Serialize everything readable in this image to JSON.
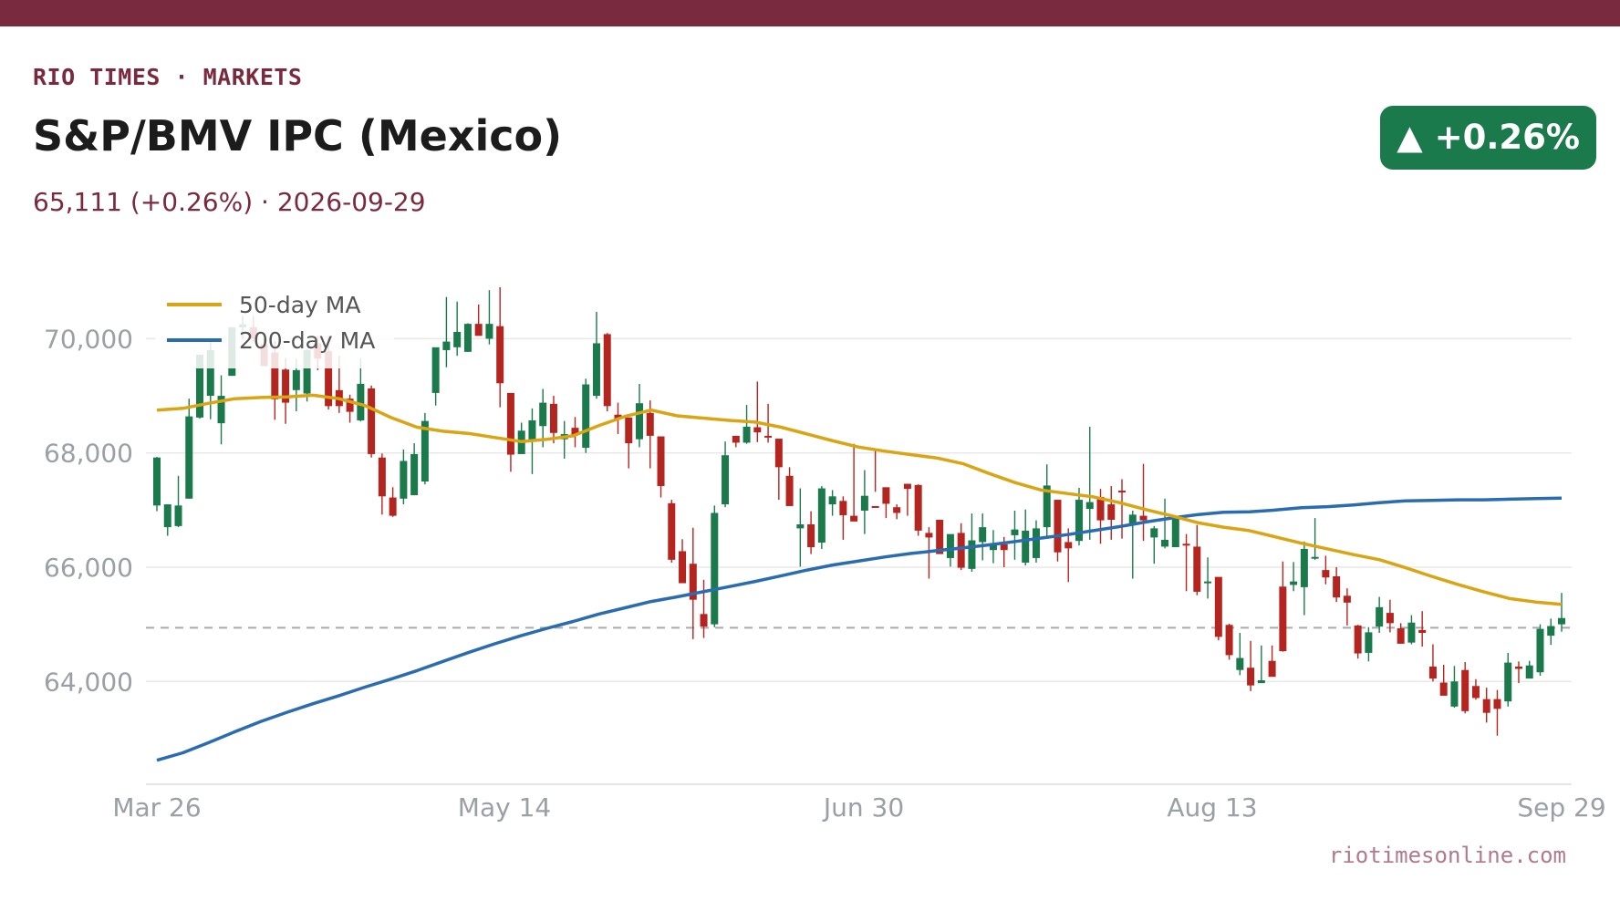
{
  "header": {
    "kicker": "RIO TIMES · MARKETS",
    "title": "S&P/BMV IPC (Mexico)",
    "subtitle": "65,111 (+0.26%)  ·  2026-09-29",
    "badge": "▲ +0.26%"
  },
  "footer": {
    "credit": "riotimesonline.com"
  },
  "colors": {
    "accent": "#7a2a3f",
    "up": "#1b7a4b",
    "down": "#b5251f",
    "ma50": "#d9a514",
    "ma200": "#2b6cb0",
    "reference": "#aaaaaa"
  },
  "chart_data": {
    "type": "candlestick",
    "x_ticks": [
      "Mar 26",
      "May 14",
      "Jun 30",
      "Aug 13",
      "Sep 29"
    ],
    "y_ticks": [
      "64,000",
      "66,000",
      "68,000",
      "70,000"
    ],
    "y_tick_values": [
      64000,
      66000,
      68000,
      70000
    ],
    "ylim": [
      62200,
      71300
    ],
    "reference_line": 64940,
    "legend": [
      "50-day MA",
      "200-day MA"
    ],
    "legend_placement": "top-left",
    "grid": "horizontal",
    "candles_ohlc": [
      [
        67080,
        67930,
        66980,
        67920
      ],
      [
        66700,
        67100,
        66550,
        67100
      ],
      [
        66720,
        67600,
        66700,
        67080
      ],
      [
        67200,
        68950,
        67200,
        68640
      ],
      [
        68620,
        69720,
        68600,
        69720
      ],
      [
        69000,
        69990,
        68590,
        69800
      ],
      [
        68520,
        69360,
        68150,
        69000
      ],
      [
        69350,
        70200,
        69350,
        70200
      ],
      [
        70200,
        70400,
        70000,
        70250
      ],
      [
        70200,
        70400,
        69950,
        70000
      ],
      [
        69900,
        70000,
        69540,
        69520
      ],
      [
        69760,
        69960,
        68580,
        68940
      ],
      [
        69460,
        69660,
        68510,
        68880
      ],
      [
        69100,
        69650,
        68730,
        69450
      ],
      [
        69040,
        69820,
        68900,
        69800
      ],
      [
        69920,
        70050,
        69450,
        69650
      ],
      [
        69780,
        70050,
        68760,
        68820
      ],
      [
        69100,
        69700,
        68700,
        68820
      ],
      [
        68950,
        69020,
        68530,
        68720
      ],
      [
        68570,
        69660,
        68550,
        69210
      ],
      [
        69130,
        69180,
        67920,
        67980
      ],
      [
        67920,
        67990,
        66920,
        67240
      ],
      [
        67220,
        67400,
        66880,
        66900
      ],
      [
        67200,
        68060,
        67100,
        67860
      ],
      [
        67260,
        68170,
        67280,
        67980
      ],
      [
        67500,
        68700,
        67450,
        68560
      ],
      [
        69050,
        69600,
        68830,
        69850
      ],
      [
        69800,
        70730,
        69500,
        69950
      ],
      [
        69850,
        70650,
        69700,
        70120
      ],
      [
        69770,
        70270,
        69770,
        70260
      ],
      [
        70260,
        70600,
        70200,
        70050
      ],
      [
        70000,
        70850,
        69900,
        70260
      ],
      [
        70220,
        70900,
        68800,
        69220
      ],
      [
        69050,
        69050,
        67670,
        67970
      ],
      [
        67980,
        68530,
        68100,
        68390
      ],
      [
        68200,
        68780,
        67630,
        68570
      ],
      [
        68470,
        69120,
        68100,
        68880
      ],
      [
        68860,
        69000,
        68170,
        68350
      ],
      [
        68240,
        68560,
        67900,
        68330
      ],
      [
        68440,
        68630,
        68100,
        68320
      ],
      [
        68090,
        69300,
        68000,
        69200
      ],
      [
        69000,
        70470,
        68950,
        69920
      ],
      [
        70080,
        70100,
        68730,
        68820
      ],
      [
        68670,
        68880,
        68330,
        68600
      ],
      [
        68620,
        68620,
        67730,
        68170
      ],
      [
        68240,
        69210,
        68100,
        68870
      ],
      [
        68700,
        68920,
        67730,
        68300
      ],
      [
        68290,
        68260,
        67220,
        67420
      ],
      [
        67120,
        67180,
        66080,
        66130
      ],
      [
        66280,
        66490,
        65720,
        65720
      ],
      [
        66060,
        66690,
        64740,
        65430
      ],
      [
        65180,
        65780,
        64760,
        64960
      ],
      [
        65000,
        67080,
        64950,
        66950
      ],
      [
        67100,
        68200,
        67050,
        67960
      ],
      [
        68300,
        68300,
        68100,
        68180
      ],
      [
        68180,
        68840,
        68160,
        68460
      ],
      [
        68450,
        69250,
        68190,
        68360
      ],
      [
        68300,
        68860,
        68180,
        68270
      ],
      [
        68250,
        68130,
        67180,
        67750
      ],
      [
        67600,
        67750,
        67100,
        67070
      ],
      [
        66680,
        67380,
        66010,
        66750
      ],
      [
        66750,
        66980,
        66230,
        66350
      ],
      [
        66430,
        67420,
        66320,
        67380
      ],
      [
        67100,
        67350,
        66900,
        67240
      ],
      [
        67160,
        67240,
        66480,
        66910
      ],
      [
        66900,
        68160,
        66840,
        66800
      ],
      [
        66990,
        67700,
        66580,
        67250
      ],
      [
        67070,
        68070,
        67320,
        67050
      ],
      [
        67400,
        67260,
        66860,
        67110
      ],
      [
        67050,
        67100,
        66840,
        66950
      ],
      [
        67460,
        67460,
        66900,
        67370
      ],
      [
        67440,
        67450,
        66550,
        66640
      ],
      [
        66600,
        66700,
        65800,
        66520
      ],
      [
        66830,
        66380,
        66680,
        66230
      ],
      [
        66160,
        66560,
        66010,
        66580
      ],
      [
        66600,
        66770,
        65950,
        65990
      ],
      [
        65970,
        66940,
        65920,
        66470
      ],
      [
        66440,
        66940,
        66120,
        66700
      ],
      [
        66300,
        66650,
        66070,
        66420
      ],
      [
        66400,
        66530,
        66000,
        66300
      ],
      [
        66560,
        66990,
        66130,
        66660
      ],
      [
        66080,
        67010,
        66030,
        66640
      ],
      [
        66160,
        66820,
        66080,
        66680
      ],
      [
        66700,
        67800,
        66500,
        67430
      ],
      [
        67180,
        67180,
        66100,
        66260
      ],
      [
        66440,
        66680,
        65740,
        66330
      ],
      [
        66460,
        67390,
        66380,
        67180
      ],
      [
        67020,
        68460,
        66480,
        67140
      ],
      [
        67230,
        67370,
        66410,
        66820
      ],
      [
        67100,
        67420,
        66480,
        66830
      ],
      [
        67340,
        67540,
        66500,
        67320
      ],
      [
        66750,
        66990,
        65800,
        66920
      ],
      [
        66900,
        67810,
        66460,
        66820
      ],
      [
        66520,
        66720,
        66060,
        66680
      ],
      [
        66360,
        67200,
        66330,
        66480
      ],
      [
        66350,
        66760,
        66550,
        66860
      ],
      [
        66410,
        66580,
        65580,
        66390
      ],
      [
        66360,
        66740,
        65510,
        65570
      ],
      [
        65720,
        66170,
        65450,
        65750
      ],
      [
        65830,
        65790,
        64720,
        64780
      ],
      [
        64990,
        65010,
        64380,
        64460
      ],
      [
        64200,
        64850,
        64110,
        64410
      ],
      [
        64240,
        64710,
        63830,
        63930
      ],
      [
        63970,
        64630,
        63980,
        64020
      ],
      [
        64360,
        64630,
        64180,
        64080
      ],
      [
        65660,
        66100,
        64520,
        64530
      ],
      [
        65690,
        66090,
        65580,
        65750
      ],
      [
        65650,
        66450,
        65160,
        66320
      ],
      [
        66160,
        66860,
        66130,
        66180
      ],
      [
        65950,
        66200,
        65700,
        65820
      ],
      [
        65840,
        66000,
        65390,
        65470
      ],
      [
        65500,
        65630,
        64980,
        65380
      ],
      [
        64980,
        64990,
        64400,
        64490
      ],
      [
        64500,
        64950,
        64350,
        64860
      ],
      [
        64960,
        65480,
        64850,
        65300
      ],
      [
        65200,
        65430,
        64860,
        65020
      ],
      [
        64930,
        65020,
        64660,
        64660
      ],
      [
        64680,
        65160,
        64650,
        65030
      ],
      [
        64900,
        65230,
        64610,
        64850
      ],
      [
        64260,
        64650,
        64000,
        64050
      ],
      [
        63980,
        64290,
        63800,
        63750
      ],
      [
        63560,
        64270,
        63540,
        64000
      ],
      [
        64200,
        64340,
        63440,
        63480
      ],
      [
        63920,
        64040,
        63680,
        63710
      ],
      [
        63690,
        63890,
        63280,
        63450
      ],
      [
        63690,
        63850,
        63050,
        63520
      ],
      [
        63650,
        64500,
        63560,
        64330
      ],
      [
        64260,
        64350,
        63970,
        64220
      ],
      [
        64050,
        64360,
        64110,
        64280
      ],
      [
        64160,
        65000,
        64100,
        64920
      ],
      [
        64800,
        65100,
        64640,
        64970
      ],
      [
        65000,
        65550,
        64870,
        65110
      ]
    ],
    "ma50": [
      [
        0,
        68750
      ],
      [
        5,
        68780
      ],
      [
        10,
        68870
      ],
      [
        15,
        68950
      ],
      [
        20,
        68970
      ],
      [
        25,
        68980
      ],
      [
        30,
        69010
      ],
      [
        35,
        68950
      ],
      [
        40,
        68830
      ],
      [
        45,
        68620
      ],
      [
        50,
        68450
      ],
      [
        55,
        68380
      ],
      [
        60,
        68340
      ],
      [
        65,
        68270
      ],
      [
        70,
        68200
      ],
      [
        75,
        68240
      ],
      [
        80,
        68300
      ],
      [
        85,
        68480
      ],
      [
        90,
        68640
      ],
      [
        95,
        68750
      ],
      [
        100,
        68650
      ],
      [
        105,
        68610
      ],
      [
        110,
        68570
      ],
      [
        115,
        68540
      ],
      [
        120,
        68450
      ],
      [
        125,
        68330
      ],
      [
        130,
        68210
      ],
      [
        135,
        68100
      ],
      [
        140,
        68030
      ],
      [
        145,
        67970
      ],
      [
        150,
        67910
      ],
      [
        155,
        67810
      ],
      [
        160,
        67640
      ],
      [
        165,
        67480
      ],
      [
        170,
        67350
      ],
      [
        175,
        67290
      ],
      [
        180,
        67230
      ],
      [
        185,
        67130
      ],
      [
        190,
        67010
      ],
      [
        195,
        66900
      ],
      [
        200,
        66780
      ],
      [
        205,
        66700
      ],
      [
        210,
        66640
      ],
      [
        215,
        66530
      ],
      [
        220,
        66420
      ],
      [
        225,
        66320
      ],
      [
        230,
        66220
      ],
      [
        235,
        66130
      ],
      [
        240,
        65990
      ],
      [
        245,
        65840
      ],
      [
        250,
        65700
      ],
      [
        255,
        65570
      ],
      [
        260,
        65450
      ],
      [
        265,
        65390
      ],
      [
        270,
        65350
      ]
    ],
    "ma200": [
      [
        0,
        62620
      ],
      [
        5,
        62750
      ],
      [
        10,
        62930
      ],
      [
        15,
        63120
      ],
      [
        20,
        63300
      ],
      [
        25,
        63460
      ],
      [
        30,
        63610
      ],
      [
        35,
        63750
      ],
      [
        40,
        63900
      ],
      [
        45,
        64040
      ],
      [
        50,
        64190
      ],
      [
        55,
        64350
      ],
      [
        60,
        64510
      ],
      [
        65,
        64660
      ],
      [
        70,
        64800
      ],
      [
        75,
        64930
      ],
      [
        80,
        65050
      ],
      [
        85,
        65180
      ],
      [
        90,
        65290
      ],
      [
        95,
        65400
      ],
      [
        100,
        65480
      ],
      [
        105,
        65570
      ],
      [
        110,
        65660
      ],
      [
        115,
        65750
      ],
      [
        120,
        65850
      ],
      [
        125,
        65950
      ],
      [
        130,
        66040
      ],
      [
        135,
        66110
      ],
      [
        140,
        66180
      ],
      [
        145,
        66240
      ],
      [
        150,
        66290
      ],
      [
        155,
        66340
      ],
      [
        160,
        66390
      ],
      [
        165,
        66450
      ],
      [
        170,
        66510
      ],
      [
        175,
        66570
      ],
      [
        180,
        66640
      ],
      [
        185,
        66710
      ],
      [
        190,
        66790
      ],
      [
        195,
        66860
      ],
      [
        200,
        66920
      ],
      [
        205,
        66960
      ],
      [
        210,
        66970
      ],
      [
        215,
        67000
      ],
      [
        220,
        67040
      ],
      [
        225,
        67060
      ],
      [
        230,
        67090
      ],
      [
        235,
        67130
      ],
      [
        240,
        67160
      ],
      [
        245,
        67170
      ],
      [
        250,
        67180
      ],
      [
        255,
        67180
      ],
      [
        260,
        67190
      ],
      [
        265,
        67200
      ],
      [
        270,
        67210
      ]
    ]
  }
}
